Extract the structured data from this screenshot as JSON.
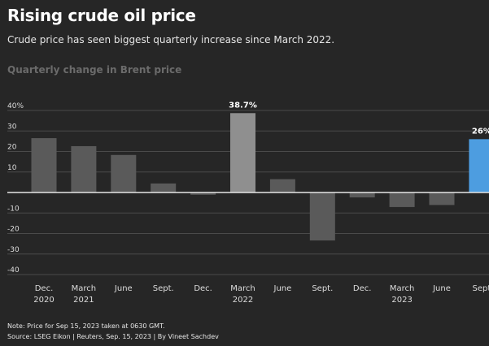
{
  "header": {
    "title": "Rising crude oil price",
    "subtitle": "Crude price has seen biggest quarterly increase since March 2022.",
    "chart_heading": "Quarterly change in Brent price"
  },
  "footer": {
    "note": "Note: Price for Sep 15, 2023 taken at 0630 GMT.",
    "source": "Source: LSEG Eikon | Reuters, Sep. 15, 2023 | By Vineet Sachdev"
  },
  "chart_data": {
    "type": "bar",
    "title": "Quarterly change in Brent price",
    "ylabel": "",
    "xlabel": "",
    "ylim": [
      -40,
      40
    ],
    "yticks": [
      40,
      30,
      20,
      10,
      0,
      -10,
      -20,
      -30,
      -40
    ],
    "ytick_labels": [
      "40%",
      "30",
      "20",
      "10",
      "",
      "-10",
      "-20",
      "-30",
      "-40"
    ],
    "grid": true,
    "categories": [
      "Dec. 2020",
      "March 2021",
      "June",
      "Sept.",
      "Dec.",
      "March 2022",
      "June",
      "Sept.",
      "Dec.",
      "March 2023",
      "June",
      "Sept"
    ],
    "category_lines": [
      [
        "Dec.",
        "2020"
      ],
      [
        "March",
        "2021"
      ],
      [
        "June"
      ],
      [
        "Sept."
      ],
      [
        "Dec."
      ],
      [
        "March",
        "2022"
      ],
      [
        "June"
      ],
      [
        "Sept."
      ],
      [
        "Dec."
      ],
      [
        "March",
        "2023"
      ],
      [
        "June"
      ],
      [
        "Sept"
      ]
    ],
    "values": [
      26.5,
      22.6,
      18.3,
      4.4,
      -1.1,
      38.7,
      6.5,
      -23.4,
      -2.4,
      -7.1,
      -6.1,
      26
    ],
    "data_labels": [
      "",
      "",
      "",
      "",
      "",
      "38.7%",
      "",
      "",
      "",
      "",
      "",
      "26%"
    ],
    "colors": {
      "default": "#5a5a5a",
      "highlight": "#8f8f8f",
      "current": "#4d9de0"
    },
    "bar_colors": [
      "default",
      "default",
      "default",
      "default",
      "default",
      "highlight",
      "default",
      "default",
      "default",
      "default",
      "default",
      "current"
    ]
  }
}
